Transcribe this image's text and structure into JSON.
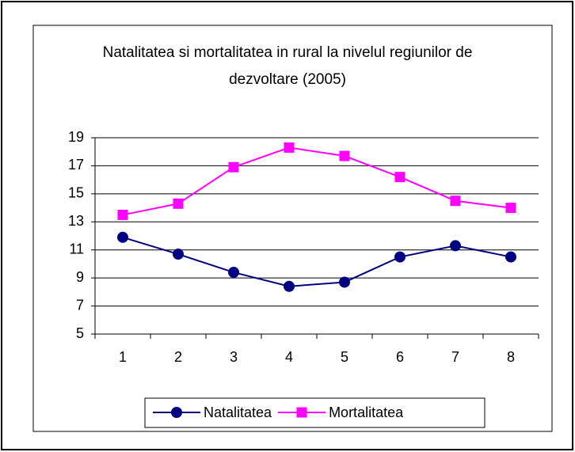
{
  "chart_data": {
    "type": "line",
    "title": "Natalitatea si mortalitatea in rural la nivelul regiunilor de dezvoltare (2005)",
    "categories": [
      "1",
      "2",
      "3",
      "4",
      "5",
      "6",
      "7",
      "8"
    ],
    "series": [
      {
        "name": "Natalitatea",
        "color": "#000080",
        "marker": "circle",
        "values": [
          11.9,
          10.7,
          9.4,
          8.4,
          8.7,
          10.5,
          11.3,
          10.5
        ]
      },
      {
        "name": "Mortalitatea",
        "color": "#ff00ff",
        "marker": "square",
        "values": [
          13.5,
          14.3,
          16.9,
          18.3,
          17.7,
          16.2,
          14.5,
          14.0
        ]
      }
    ],
    "ylim": [
      5,
      19
    ],
    "yticks": [
      5,
      7,
      9,
      11,
      13,
      15,
      17,
      19
    ],
    "grid": true,
    "legend": "bottom"
  }
}
